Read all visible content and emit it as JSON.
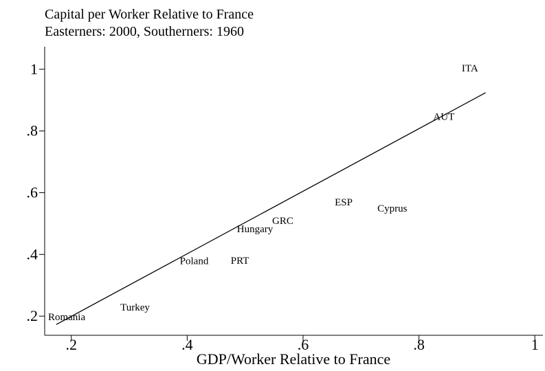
{
  "chart_data": {
    "type": "scatter",
    "title": "Capital per Worker Relative to France",
    "subtitle": "Easterners: 2000, Southerners: 1960",
    "x_label": "GDP/Worker Relative to France",
    "labels": [
      "ITA",
      "AUT",
      "ESP",
      "Cyprus",
      "GRC",
      "Hungary",
      "PRT",
      "Poland",
      "Turkey",
      "Romania"
    ],
    "x": [
      0.888,
      0.843,
      0.67,
      0.754,
      0.565,
      0.517,
      0.491,
      0.412,
      0.31,
      0.192
    ],
    "y": [
      1.004,
      0.847,
      0.57,
      0.55,
      0.51,
      0.483,
      0.381,
      0.379,
      0.229,
      0.198
    ],
    "fit_line": {
      "x": [
        0.174,
        0.915
      ],
      "y": [
        0.173,
        0.924
      ],
      "color": "#000000"
    },
    "xlim": [
      0.154,
      1.014
    ],
    "ylim": [
      0.138,
      1.073
    ],
    "xticks": [
      {
        "value": 0.2,
        "label": ".2"
      },
      {
        "value": 0.4,
        "label": ".4"
      },
      {
        "value": 0.6,
        "label": ".6"
      },
      {
        "value": 0.8,
        "label": ".8"
      },
      1
    ],
    "yticks": [
      {
        "value": 0.2,
        "label": ".2"
      },
      {
        "value": 0.4,
        "label": ".4"
      },
      {
        "value": 0.6,
        "label": ".6"
      },
      {
        "value": 0.8,
        "label": ".8"
      },
      1
    ]
  }
}
